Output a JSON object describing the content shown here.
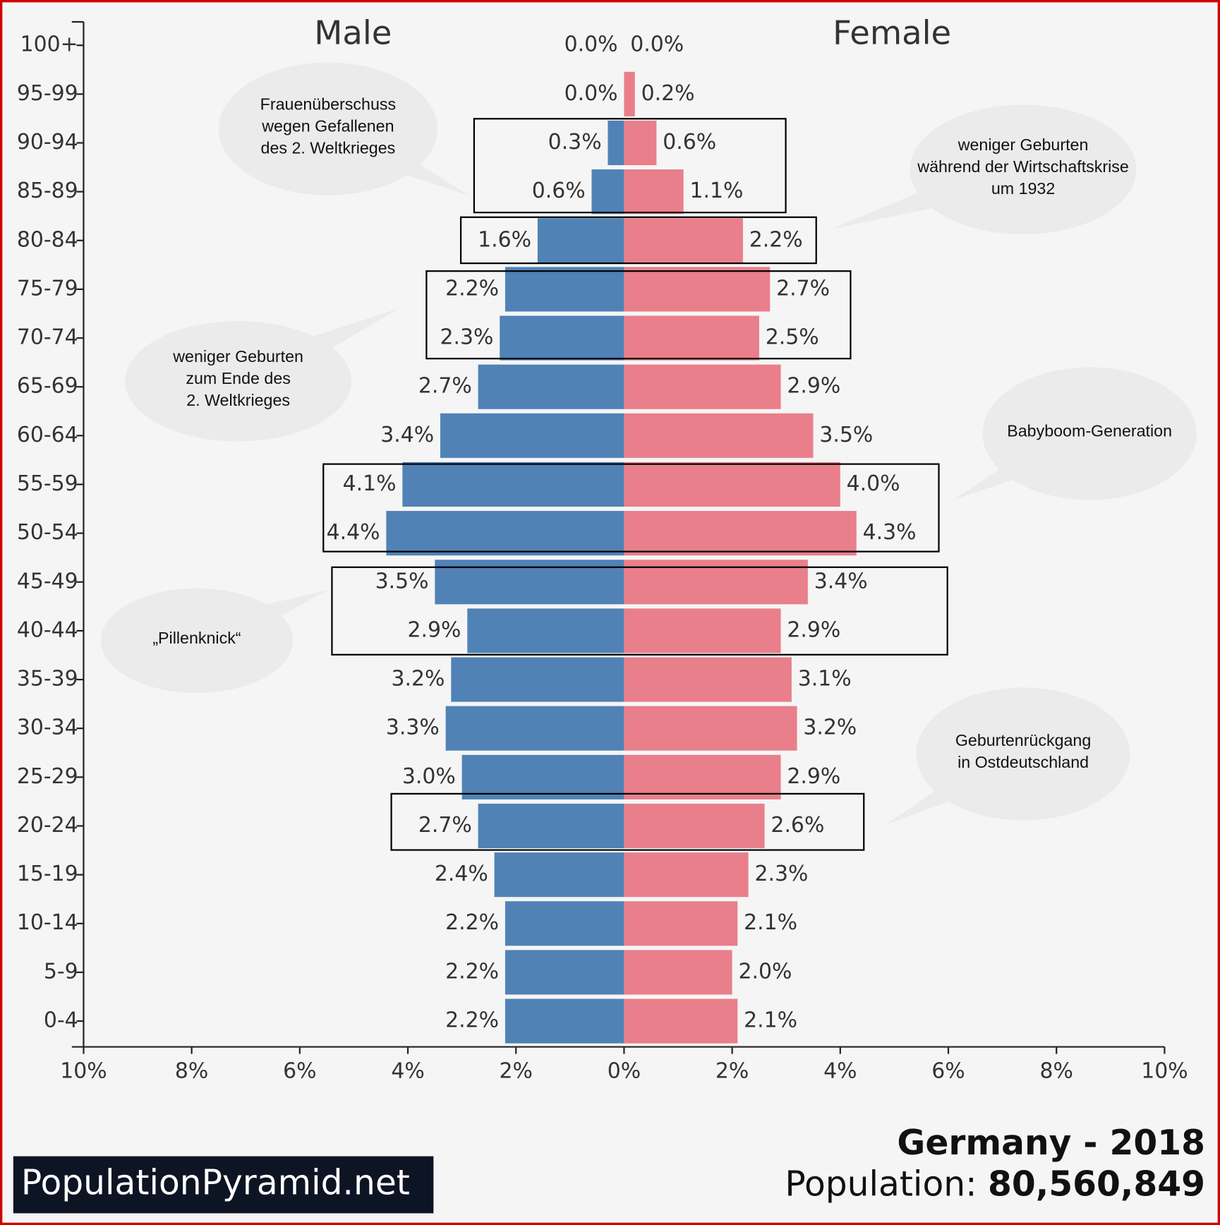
{
  "chart_data": {
    "type": "pyramid",
    "categories": [
      "100+",
      "95-99",
      "90-94",
      "85-89",
      "80-84",
      "75-79",
      "70-74",
      "65-69",
      "60-64",
      "55-59",
      "50-54",
      "45-49",
      "40-44",
      "35-39",
      "30-34",
      "25-29",
      "20-24",
      "15-19",
      "10-14",
      "5-9",
      "0-4"
    ],
    "series": [
      {
        "name": "Male",
        "color": "#5082b6",
        "side": "left",
        "values": [
          0.0,
          0.0,
          0.3,
          0.6,
          1.6,
          2.2,
          2.3,
          2.7,
          3.4,
          4.1,
          4.4,
          3.5,
          2.9,
          3.2,
          3.3,
          3.0,
          2.7,
          2.4,
          2.2,
          2.2,
          2.2
        ],
        "value_labels": [
          "0.0%",
          "0.0%",
          "0.3%",
          "0.6%",
          "1.6%",
          "2.2%",
          "2.3%",
          "2.7%",
          "3.4%",
          "4.1%",
          "4.4%",
          "3.5%",
          "2.9%",
          "3.2%",
          "3.3%",
          "3.0%",
          "2.7%",
          "2.4%",
          "2.2%",
          "2.2%",
          "2.2%"
        ]
      },
      {
        "name": "Female",
        "color": "#e97f8a",
        "side": "right",
        "values": [
          0.0,
          0.2,
          0.6,
          1.1,
          2.2,
          2.7,
          2.5,
          2.9,
          3.5,
          4.0,
          4.3,
          3.4,
          2.9,
          3.1,
          3.2,
          2.9,
          2.6,
          2.3,
          2.1,
          2.0,
          2.1
        ],
        "value_labels": [
          "0.0%",
          "0.2%",
          "0.6%",
          "1.1%",
          "2.2%",
          "2.7%",
          "2.5%",
          "2.9%",
          "3.5%",
          "4.0%",
          "4.3%",
          "3.4%",
          "2.9%",
          "3.1%",
          "3.2%",
          "2.9%",
          "2.6%",
          "2.3%",
          "2.1%",
          "2.0%",
          "2.1%"
        ]
      }
    ],
    "xlim": [
      -10,
      10
    ],
    "xticks": [
      {
        "value": -10,
        "label": "10%"
      },
      {
        "value": -8,
        "label": "8%"
      },
      {
        "value": -6,
        "label": "6%"
      },
      {
        "value": -4,
        "label": "4%"
      },
      {
        "value": -2,
        "label": "2%"
      },
      {
        "value": 0,
        "label": "0%"
      },
      {
        "value": 2,
        "label": "2%"
      },
      {
        "value": 4,
        "label": "4%"
      },
      {
        "value": 6,
        "label": "6%"
      },
      {
        "value": 8,
        "label": "8%"
      },
      {
        "value": 10,
        "label": "10%"
      }
    ],
    "title": "Germany - 2018",
    "population_label": "Population:",
    "population": "80,560,849",
    "brand": "PopulationPyramid.net",
    "annotations": [
      {
        "lines": [
          "Frauenüberschuss",
          "wegen Gefallenen",
          "des 2. Weltkrieges"
        ]
      },
      {
        "lines": [
          "weniger Geburten",
          "während der Wirtschaftskrise",
          "um 1932"
        ]
      },
      {
        "lines": [
          "weniger Geburten",
          "zum Ende des",
          "2. Weltkrieges"
        ]
      },
      {
        "lines": [
          "Babyboom-Generation"
        ]
      },
      {
        "lines": [
          "„Pillenknick“"
        ]
      },
      {
        "lines": [
          "Geburtenrückgang",
          "in Ostdeutschland"
        ]
      }
    ]
  }
}
